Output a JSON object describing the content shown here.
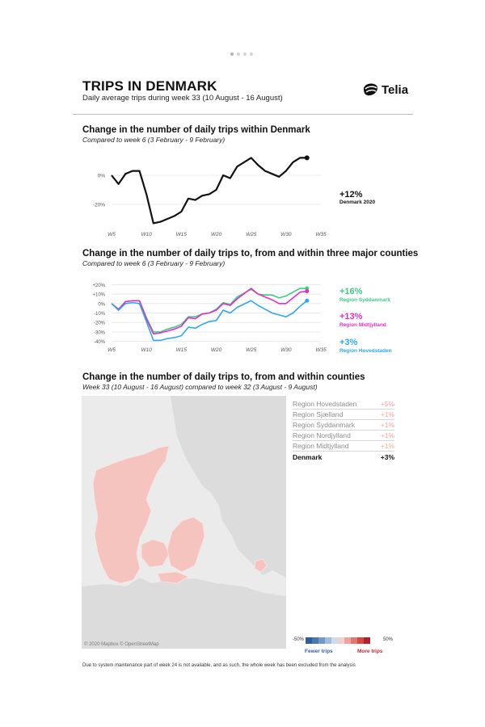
{
  "header": {
    "title": "TRIPS IN DENMARK",
    "subtitle": "Daily average trips during week 33 (10 August - 16 August)",
    "logo_text": "Telia",
    "logo_icon": "telia-pebble-icon"
  },
  "section1": {
    "title": "Change in the number of daily trips within Denmark",
    "subtitle": "Compared to week 6 (3 February - 9 February)",
    "annotation_value": "+12%",
    "annotation_label": "Denmark 2020"
  },
  "section2": {
    "title": "Change in the number of daily trips to, from and within three major counties",
    "subtitle": "Compared to week 6 (3 February - 9 February)",
    "labels": [
      {
        "value": "+16%",
        "name": "Region Syddanmark",
        "color": "#3dcc86"
      },
      {
        "value": "+13%",
        "name": "Region Midtjylland",
        "color": "#e52ec9"
      },
      {
        "value": "+3%",
        "name": "Region Hovedstaden",
        "color": "#2ea7ef"
      }
    ]
  },
  "section3": {
    "title": "Change in the number of daily trips to, from and within counties",
    "subtitle": "Week 33 (10 August - 16 August) compared to week 32 (3 August - 9 August)",
    "map_credit": "© 2020 Mapbox © OpenStreetMap",
    "table": [
      {
        "region": "Region Hovedstaden",
        "value": "+5%"
      },
      {
        "region": "Region Sjælland",
        "value": "+1%"
      },
      {
        "region": "Region Syddanmark",
        "value": "+1%"
      },
      {
        "region": "Region Nordjylland",
        "value": "+1%"
      },
      {
        "region": "Region Midtjylland",
        "value": "+1%"
      }
    ],
    "total": {
      "region": "Denmark",
      "value": "+3%"
    },
    "scale_min": "-50%",
    "scale_max": "50%",
    "fewer_label": "Fewer trips",
    "more_label": "More trips",
    "scale_colors": [
      "#2f5d9c",
      "#4a78b0",
      "#7499c4",
      "#a3bcd8",
      "#cfdbea",
      "#f3d0cf",
      "#eda49f",
      "#e3776f",
      "#d34a44",
      "#b5202c"
    ]
  },
  "footnote": "Due to system maintenance part of week 24 is not available, and as such, the whole week has been excluded from the analysis",
  "chart_data": [
    {
      "type": "line",
      "x": [
        5,
        6,
        7,
        8,
        9,
        10,
        11,
        12,
        13,
        14,
        15,
        16,
        17,
        18,
        19,
        20,
        21,
        22,
        23,
        25,
        26,
        27,
        28,
        29,
        30,
        31,
        32,
        33
      ],
      "x_ticks": [
        "W5",
        "W10",
        "W15",
        "W20",
        "W25",
        "W30",
        "W35"
      ],
      "x_tick_values": [
        5,
        10,
        15,
        20,
        25,
        30,
        35
      ],
      "y_ticks": [
        "0%",
        "-20%"
      ],
      "y_tick_values": [
        0,
        -20
      ],
      "ylim": [
        -35,
        15
      ],
      "xlim": [
        5,
        35
      ],
      "series": [
        {
          "name": "Denmark 2020",
          "color": "#111111",
          "values": [
            0,
            -6,
            1,
            3,
            3,
            -13,
            -33,
            -32,
            -30,
            -28,
            -25,
            -16,
            -17,
            -14,
            -13,
            -10,
            0,
            -2,
            6,
            12,
            7,
            3,
            1,
            -1,
            3,
            9,
            12,
            12
          ]
        }
      ]
    },
    {
      "type": "line",
      "x": [
        5,
        6,
        7,
        8,
        9,
        10,
        11,
        12,
        13,
        14,
        15,
        16,
        17,
        18,
        19,
        20,
        21,
        22,
        23,
        25,
        26,
        27,
        28,
        29,
        30,
        31,
        32,
        33
      ],
      "x_ticks": [
        "W5",
        "W10",
        "W15",
        "W20",
        "W25",
        "W30",
        "W35"
      ],
      "x_tick_values": [
        5,
        10,
        15,
        20,
        25,
        30,
        35
      ],
      "y_ticks": [
        "+20%",
        "+10%",
        "0%",
        "-10%",
        "-20%",
        "-30%",
        "-40%"
      ],
      "y_tick_values": [
        20,
        10,
        0,
        -10,
        -20,
        -30,
        -40
      ],
      "ylim": [
        -42,
        22
      ],
      "xlim": [
        5,
        35
      ],
      "series": [
        {
          "name": "Region Syddanmark",
          "color": "#3dcc86",
          "values": [
            0,
            -7,
            2,
            3,
            3,
            -15,
            -30,
            -30,
            -27,
            -25,
            -22,
            -14,
            -14,
            -11,
            -10,
            -6,
            1,
            -1,
            7,
            15,
            10,
            9,
            9,
            6,
            8,
            12,
            16,
            16
          ]
        },
        {
          "name": "Region Midtjylland",
          "color": "#e52ec9",
          "values": [
            0,
            -6,
            2,
            3,
            3,
            -16,
            -32,
            -31,
            -29,
            -27,
            -24,
            -15,
            -16,
            -11,
            -10,
            -7,
            0,
            -2,
            5,
            16,
            10,
            7,
            4,
            0,
            0,
            6,
            12,
            13
          ]
        },
        {
          "name": "Region Hovedstaden",
          "color": "#2ea7ef",
          "values": [
            0,
            -7,
            0,
            1,
            0,
            -19,
            -39,
            -39,
            -37,
            -36,
            -34,
            -25,
            -26,
            -22,
            -19,
            -18,
            -7,
            -10,
            -4,
            3,
            -2,
            -6,
            -10,
            -12,
            -14,
            -10,
            -3,
            3
          ]
        }
      ]
    }
  ]
}
